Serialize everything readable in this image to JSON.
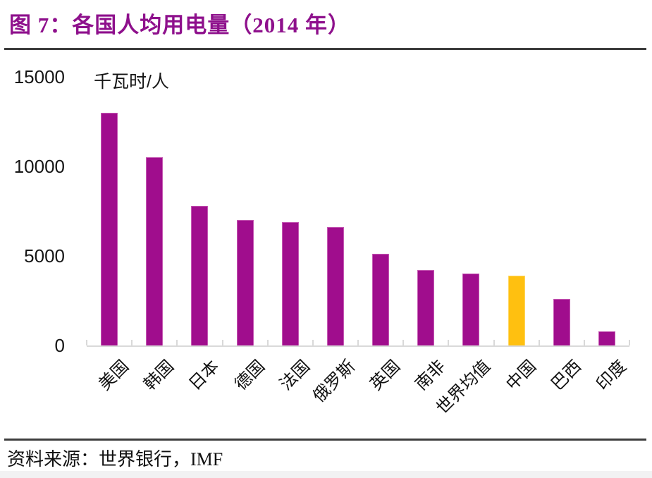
{
  "page": {
    "title": "图 7：各国人均用电量（2014 年）",
    "source_label": "资料来源：世界银行，IMF"
  },
  "chart_data": {
    "type": "bar",
    "title": "各国人均用电量（2014 年）",
    "figure_number": "图 7",
    "unit_label": "千瓦时/人",
    "categories": [
      "美国",
      "韩国",
      "日本",
      "德国",
      "法国",
      "俄罗斯",
      "英国",
      "南非",
      "世界均值",
      "中国",
      "巴西",
      "印度"
    ],
    "values": [
      13000,
      10500,
      7800,
      7000,
      6900,
      6600,
      5100,
      4200,
      4000,
      3900,
      2600,
      800
    ],
    "highlight_index": 9,
    "highlight_category": "中国",
    "ylabel": "千瓦时/人",
    "xlabel": "",
    "ylim": [
      0,
      15000
    ],
    "yticks": [
      0,
      5000,
      10000,
      15000
    ],
    "grid": false,
    "legend_position": "none",
    "colors": {
      "bar": "#a00d8d",
      "bar_border": "#c55ab3",
      "highlight_bar": "#ffc010",
      "highlight_border": "#ffd65e",
      "axis": "#d9d9d9",
      "title_text": "#8e108c",
      "text": "#161616",
      "rule": "#3d3d3d"
    }
  }
}
